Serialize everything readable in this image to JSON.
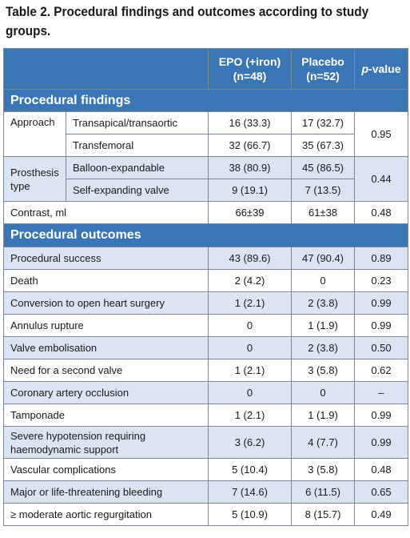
{
  "caption": "Table 2. Procedural findings and outcomes according to study groups.",
  "columns": {
    "epo": [
      "EPO (+iron)",
      "(n=48)"
    ],
    "placebo": [
      "Placebo",
      "(n=52)"
    ],
    "pvalue_italic": "p",
    "pvalue_rest": "-value"
  },
  "sections": {
    "findings": "Procedural findings",
    "outcomes": "Procedural outcomes"
  },
  "findings": {
    "approach": {
      "label": "Approach",
      "rows": [
        {
          "sub": "Transapical/transaortic",
          "epo": "16 (33.3)",
          "placebo": "17 (32.7)"
        },
        {
          "sub": "Transfemoral",
          "epo": "32 (66.7)",
          "placebo": "35 (67.3)"
        }
      ],
      "p": "0.95"
    },
    "prosthesis": {
      "label": [
        "Prosthesis",
        "type"
      ],
      "rows": [
        {
          "sub": "Balloon-expandable",
          "epo": "38 (80.9)",
          "placebo": "45 (86.5)"
        },
        {
          "sub": "Self-expanding valve",
          "epo": "9 (19.1)",
          "placebo": "7 (13.5)"
        }
      ],
      "p": "0.44"
    },
    "contrast": {
      "label": "Contrast, ml",
      "epo": "66±39",
      "placebo": "61±38",
      "p": "0.48"
    }
  },
  "outcomes": [
    {
      "label": "Procedural success",
      "epo": "43 (89.6)",
      "placebo": "47 (90.4)",
      "p": "0.89"
    },
    {
      "label": "Death",
      "epo": "2 (4.2)",
      "placebo": "0",
      "p": "0.23"
    },
    {
      "label": "Conversion to open heart surgery",
      "epo": "1 (2.1)",
      "placebo": "2 (3.8)",
      "p": "0.99"
    },
    {
      "label": "Annulus rupture",
      "epo": "0",
      "placebo": "1 (1.9)",
      "p": "0.99"
    },
    {
      "label": "Valve embolisation",
      "epo": "0",
      "placebo": "2 (3.8)",
      "p": "0.50"
    },
    {
      "label": "Need for a second valve",
      "epo": "1 (2.1)",
      "placebo": "3 (5.8)",
      "p": "0.62"
    },
    {
      "label": "Coronary artery occlusion",
      "epo": "0",
      "placebo": "0",
      "p": "–"
    },
    {
      "label": "Tamponade",
      "epo": "1 (2.1)",
      "placebo": "1 (1.9)",
      "p": "0.99"
    },
    {
      "label": [
        "Severe hypotension requiring",
        "haemodynamic support"
      ],
      "epo": "3 (6.2)",
      "placebo": "4 (7.7)",
      "p": "0.99"
    },
    {
      "label": "Vascular complications",
      "epo": "5 (10.4)",
      "placebo": "3 (5.8)",
      "p": "0.48"
    },
    {
      "label": "Major or life-threatening bleeding",
      "epo": "7 (14.6)",
      "placebo": "6 (11.5)",
      "p": "0.65"
    },
    {
      "label": "≥ moderate aortic regurgitation",
      "epo": "5 (10.9)",
      "placebo": "8 (15.7)",
      "p": "0.49"
    }
  ]
}
